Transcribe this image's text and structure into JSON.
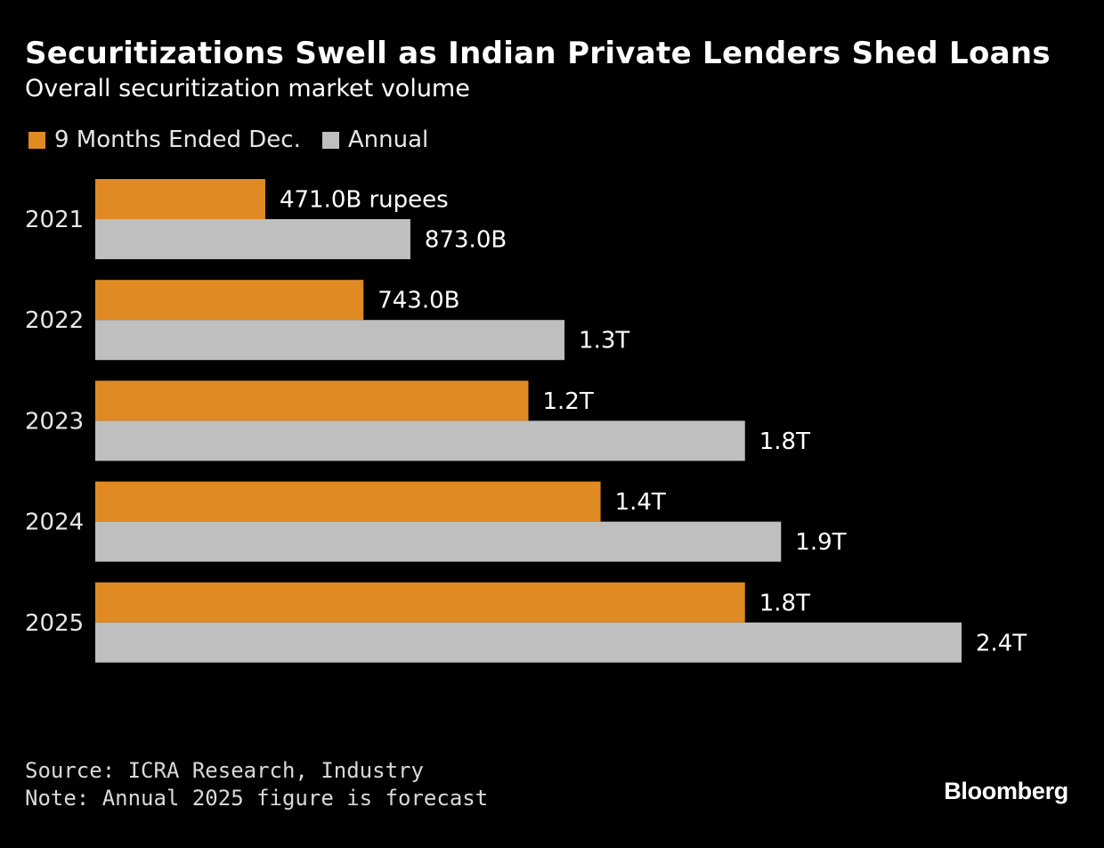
{
  "title": "Securitizations Swell as Indian Private Lenders Shed Loans",
  "subtitle": "Overall securitization market volume",
  "colors": {
    "nine_months": "#e08a24",
    "annual": "#bfbfbf",
    "background": "#000000"
  },
  "chart_data": {
    "type": "bar",
    "orientation": "horizontal",
    "categories": [
      "2021",
      "2022",
      "2023",
      "2024",
      "2025"
    ],
    "unit": "rupees",
    "series": [
      {
        "name": "9 Months Ended Dec.",
        "values": [
          471000000000,
          743000000000,
          1200000000000,
          1400000000000,
          1800000000000
        ],
        "labels": [
          "471.0B rupees",
          "743.0B",
          "1.2T",
          "1.4T",
          "1.8T"
        ]
      },
      {
        "name": "Annual",
        "values": [
          873000000000,
          1300000000000,
          1800000000000,
          1900000000000,
          2400000000000
        ],
        "labels": [
          "873.0B",
          "1.3T",
          "1.8T",
          "1.9T",
          "2.4T"
        ]
      }
    ],
    "xlim": [
      0,
      2400000000000
    ],
    "grid": false,
    "legend_position": "top-left"
  },
  "footer": {
    "source": "Source: ICRA Research, Industry",
    "note": "Note: Annual 2025 figure is forecast"
  },
  "brand": "Bloomberg"
}
